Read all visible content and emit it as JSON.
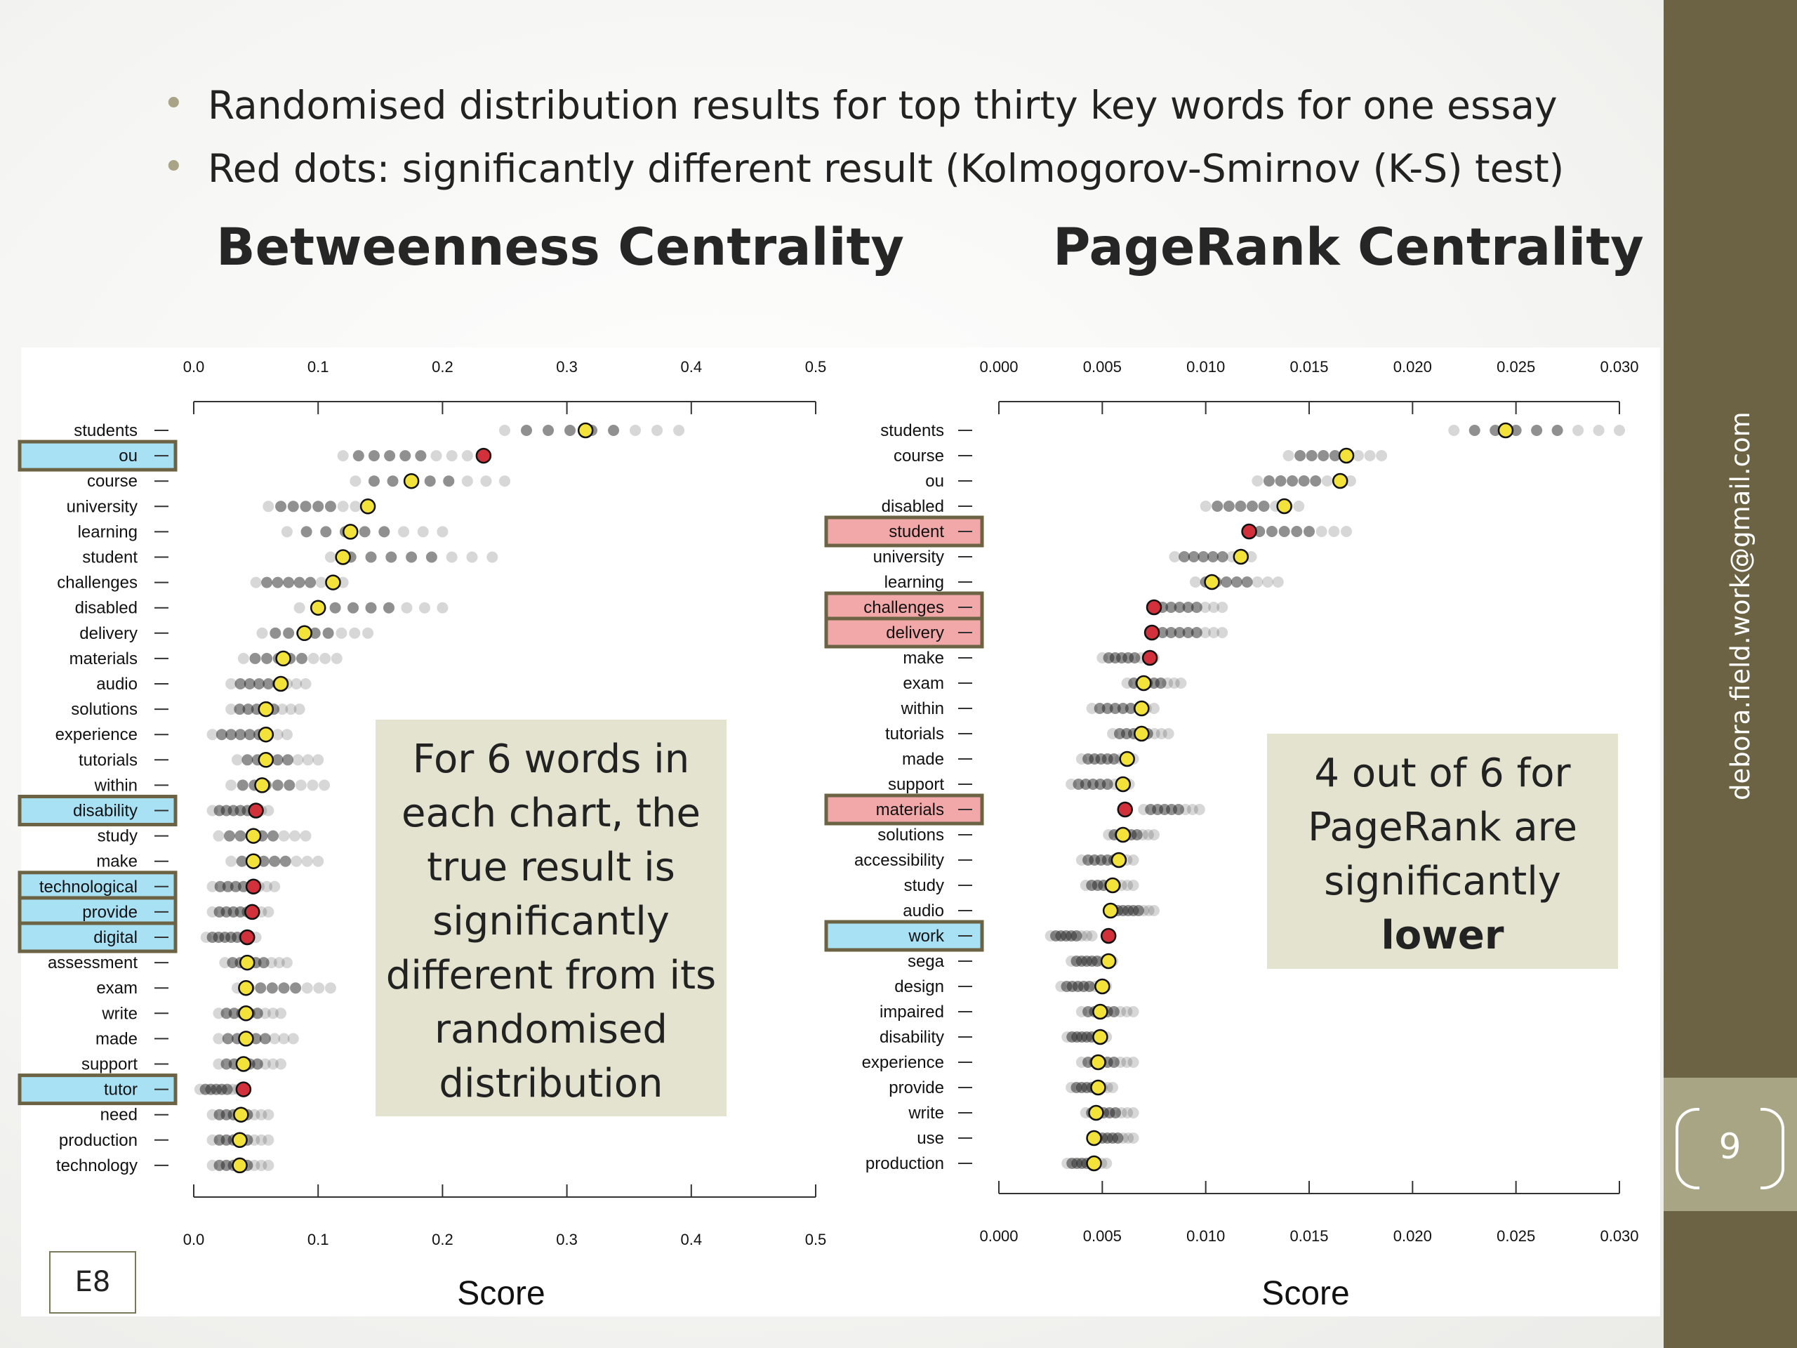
{
  "bullets": [
    "Randomised distribution results for top thirty key words for one essay",
    "Red dots: significantly different result  (Kolmogorov-Smirnov (K-S) test)"
  ],
  "left_title": "Betweenness Centrality",
  "right_title": "PageRank Centrality",
  "note_left": [
    "For 6 words in",
    "each chart, the",
    "true result is",
    "significantly",
    "different from its",
    "randomised",
    "distribution"
  ],
  "note_right": {
    "lines": [
      "4 out of 6 for",
      "PageRank are",
      "significantly"
    ],
    "bold": "lower"
  },
  "corner_label": "E8",
  "sidebar": {
    "email": "debora.field.work@gmail.com",
    "page_number": "9"
  },
  "colors": {
    "true_significant": "#d2313b",
    "true_not_significant": "#f2e23a",
    "highlight_blue": "#a8e0f4",
    "highlight_pink": "#f2a8a8",
    "highlight_border": "#6b6343",
    "sidebar": "#6b6343"
  },
  "chart_data": [
    {
      "type": "scatter",
      "title": "Betweenness Centrality",
      "xlabel": "Score",
      "xlim": [
        0,
        0.5
      ],
      "xticks": [
        "0.0",
        "0.1",
        "0.2",
        "0.3",
        "0.4",
        "0.5"
      ],
      "rows": [
        {
          "word": "students",
          "true": 0.315,
          "rand": [
            0.25,
            0.39
          ],
          "sig": false
        },
        {
          "word": "ou",
          "true": 0.233,
          "rand": [
            0.12,
            0.22
          ],
          "sig": true,
          "hl": "blue"
        },
        {
          "word": "course",
          "true": 0.175,
          "rand": [
            0.13,
            0.25
          ],
          "sig": false
        },
        {
          "word": "university",
          "true": 0.14,
          "rand": [
            0.06,
            0.14
          ],
          "sig": false
        },
        {
          "word": "learning",
          "true": 0.126,
          "rand": [
            0.075,
            0.2
          ],
          "sig": false
        },
        {
          "word": "student",
          "true": 0.12,
          "rand": [
            0.11,
            0.24
          ],
          "sig": false
        },
        {
          "word": "challenges",
          "true": 0.112,
          "rand": [
            0.05,
            0.12
          ],
          "sig": false
        },
        {
          "word": "disabled",
          "true": 0.1,
          "rand": [
            0.085,
            0.2
          ],
          "sig": false
        },
        {
          "word": "delivery",
          "true": 0.089,
          "rand": [
            0.055,
            0.14
          ],
          "sig": false
        },
        {
          "word": "materials",
          "true": 0.072,
          "rand": [
            0.04,
            0.115
          ],
          "sig": false
        },
        {
          "word": "audio",
          "true": 0.07,
          "rand": [
            0.03,
            0.09
          ],
          "sig": false
        },
        {
          "word": "solutions",
          "true": 0.058,
          "rand": [
            0.03,
            0.085
          ],
          "sig": false
        },
        {
          "word": "experience",
          "true": 0.058,
          "rand": [
            0.015,
            0.075
          ],
          "sig": false
        },
        {
          "word": "tutorials",
          "true": 0.058,
          "rand": [
            0.035,
            0.1
          ],
          "sig": false
        },
        {
          "word": "within",
          "true": 0.055,
          "rand": [
            0.03,
            0.105
          ],
          "sig": false
        },
        {
          "word": "disability",
          "true": 0.05,
          "rand": [
            0.015,
            0.06
          ],
          "sig": true,
          "hl": "blue"
        },
        {
          "word": "study",
          "true": 0.048,
          "rand": [
            0.02,
            0.09
          ],
          "sig": false
        },
        {
          "word": "make",
          "true": 0.048,
          "rand": [
            0.03,
            0.1
          ],
          "sig": false
        },
        {
          "word": "technological",
          "true": 0.048,
          "rand": [
            0.015,
            0.065
          ],
          "sig": true,
          "hl": "blue"
        },
        {
          "word": "provide",
          "true": 0.047,
          "rand": [
            0.015,
            0.06
          ],
          "sig": true,
          "hl": "blue"
        },
        {
          "word": "digital",
          "true": 0.043,
          "rand": [
            0.01,
            0.05
          ],
          "sig": true,
          "hl": "blue"
        },
        {
          "word": "assessment",
          "true": 0.043,
          "rand": [
            0.025,
            0.075
          ],
          "sig": false
        },
        {
          "word": "exam",
          "true": 0.042,
          "rand": [
            0.035,
            0.11
          ],
          "sig": false
        },
        {
          "word": "write",
          "true": 0.042,
          "rand": [
            0.02,
            0.07
          ],
          "sig": false
        },
        {
          "word": "made",
          "true": 0.042,
          "rand": [
            0.02,
            0.08
          ],
          "sig": false
        },
        {
          "word": "support",
          "true": 0.04,
          "rand": [
            0.02,
            0.07
          ],
          "sig": false
        },
        {
          "word": "tutor",
          "true": 0.04,
          "rand": [
            0.005,
            0.04
          ],
          "sig": true,
          "hl": "blue"
        },
        {
          "word": "need",
          "true": 0.038,
          "rand": [
            0.015,
            0.06
          ],
          "sig": false
        },
        {
          "word": "production",
          "true": 0.037,
          "rand": [
            0.015,
            0.06
          ],
          "sig": false
        },
        {
          "word": "technology",
          "true": 0.037,
          "rand": [
            0.015,
            0.06
          ],
          "sig": false
        }
      ]
    },
    {
      "type": "scatter",
      "title": "PageRank Centrality",
      "xlabel": "Score",
      "xlim": [
        0,
        0.03
      ],
      "xticks": [
        "0.000",
        "0.005",
        "0.010",
        "0.015",
        "0.020",
        "0.025",
        "0.030"
      ],
      "rows": [
        {
          "word": "students",
          "true": 0.0245,
          "rand": [
            0.022,
            0.03
          ],
          "sig": false
        },
        {
          "word": "course",
          "true": 0.0168,
          "rand": [
            0.014,
            0.0185
          ],
          "sig": false
        },
        {
          "word": "ou",
          "true": 0.0165,
          "rand": [
            0.0125,
            0.017
          ],
          "sig": false
        },
        {
          "word": "disabled",
          "true": 0.0138,
          "rand": [
            0.01,
            0.0145
          ],
          "sig": false
        },
        {
          "word": "student",
          "true": 0.0121,
          "rand": [
            0.012,
            0.0168
          ],
          "sig": true,
          "hl": "pink"
        },
        {
          "word": "university",
          "true": 0.0117,
          "rand": [
            0.0085,
            0.0122
          ],
          "sig": false
        },
        {
          "word": "learning",
          "true": 0.0103,
          "rand": [
            0.0095,
            0.0135
          ],
          "sig": false
        },
        {
          "word": "challenges",
          "true": 0.0075,
          "rand": [
            0.0075,
            0.0108
          ],
          "sig": true,
          "hl": "pink"
        },
        {
          "word": "delivery",
          "true": 0.0074,
          "rand": [
            0.0075,
            0.0108
          ],
          "sig": true,
          "hl": "pink"
        },
        {
          "word": "make",
          "true": 0.0073,
          "rand": [
            0.005,
            0.0075
          ],
          "sig": true
        },
        {
          "word": "exam",
          "true": 0.007,
          "rand": [
            0.0062,
            0.0088
          ],
          "sig": false
        },
        {
          "word": "within",
          "true": 0.0069,
          "rand": [
            0.0045,
            0.0075
          ],
          "sig": false
        },
        {
          "word": "tutorials",
          "true": 0.0069,
          "rand": [
            0.0055,
            0.0082
          ],
          "sig": false
        },
        {
          "word": "made",
          "true": 0.0062,
          "rand": [
            0.004,
            0.0065
          ],
          "sig": false
        },
        {
          "word": "support",
          "true": 0.006,
          "rand": [
            0.0035,
            0.0063
          ],
          "sig": false
        },
        {
          "word": "materials",
          "true": 0.0061,
          "rand": [
            0.007,
            0.0097
          ],
          "sig": true,
          "hl": "pink"
        },
        {
          "word": "solutions",
          "true": 0.006,
          "rand": [
            0.0053,
            0.0075
          ],
          "sig": false
        },
        {
          "word": "accessibility",
          "true": 0.0058,
          "rand": [
            0.004,
            0.0065
          ],
          "sig": false
        },
        {
          "word": "study",
          "true": 0.0055,
          "rand": [
            0.0042,
            0.0065
          ],
          "sig": false
        },
        {
          "word": "audio",
          "true": 0.0054,
          "rand": [
            0.0055,
            0.0075
          ],
          "sig": false
        },
        {
          "word": "work",
          "true": 0.0053,
          "rand": [
            0.0025,
            0.0045
          ],
          "sig": true,
          "hl": "blue"
        },
        {
          "word": "sega",
          "true": 0.0053,
          "rand": [
            0.0035,
            0.0055
          ],
          "sig": false
        },
        {
          "word": "design",
          "true": 0.005,
          "rand": [
            0.003,
            0.0052
          ],
          "sig": false
        },
        {
          "word": "impaired",
          "true": 0.0049,
          "rand": [
            0.004,
            0.0065
          ],
          "sig": false
        },
        {
          "word": "disability",
          "true": 0.0049,
          "rand": [
            0.0033,
            0.0052
          ],
          "sig": false
        },
        {
          "word": "experience",
          "true": 0.0048,
          "rand": [
            0.004,
            0.0065
          ],
          "sig": false
        },
        {
          "word": "provide",
          "true": 0.0048,
          "rand": [
            0.0035,
            0.0055
          ],
          "sig": false
        },
        {
          "word": "write",
          "true": 0.0047,
          "rand": [
            0.0042,
            0.0065
          ],
          "sig": false
        },
        {
          "word": "use",
          "true": 0.0046,
          "rand": [
            0.0045,
            0.0065
          ],
          "sig": false
        },
        {
          "word": "production",
          "true": 0.0046,
          "rand": [
            0.0033,
            0.0052
          ],
          "sig": false
        }
      ]
    }
  ]
}
